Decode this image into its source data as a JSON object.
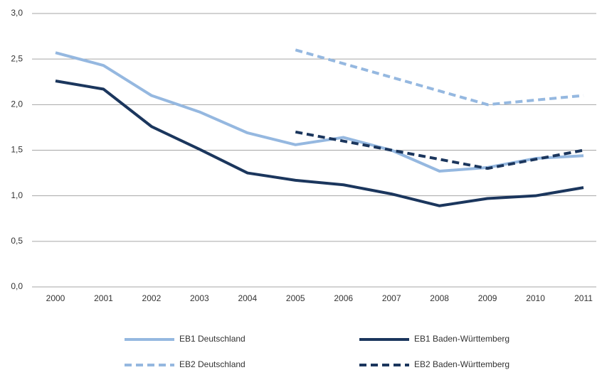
{
  "chart_data": {
    "type": "line",
    "categories": [
      "2000",
      "2001",
      "2002",
      "2003",
      "2004",
      "2005",
      "2006",
      "2007",
      "2008",
      "2009",
      "2010",
      "2011"
    ],
    "series": [
      {
        "name": "EB1 Deutschland",
        "color": "#95b8e0",
        "dashed": false,
        "values": [
          2.57,
          2.43,
          2.1,
          1.92,
          1.69,
          1.56,
          1.64,
          1.5,
          1.27,
          1.31,
          1.41,
          1.44
        ]
      },
      {
        "name": "EB1 Baden-Württemberg",
        "color": "#1b365d",
        "dashed": false,
        "values": [
          2.26,
          2.17,
          1.76,
          1.51,
          1.25,
          1.17,
          1.12,
          1.02,
          0.89,
          0.97,
          1.0,
          1.09
        ]
      },
      {
        "name": "EB2 Deutschland",
        "color": "#95b8e0",
        "dashed": true,
        "values": [
          null,
          null,
          null,
          null,
          null,
          2.6,
          2.45,
          2.3,
          2.15,
          2.0,
          2.05,
          2.1
        ]
      },
      {
        "name": "EB2 Baden-Württemberg",
        "color": "#1b365d",
        "dashed": true,
        "values": [
          null,
          null,
          null,
          null,
          null,
          1.7,
          1.6,
          1.5,
          1.4,
          1.3,
          1.4,
          1.5
        ]
      }
    ],
    "ylim": [
      0,
      3
    ],
    "yticks": [
      {
        "value": 0,
        "label": "0,0"
      },
      {
        "value": 0.5,
        "label": "0,5"
      },
      {
        "value": 1,
        "label": "1,0"
      },
      {
        "value": 1.5,
        "label": "1,5"
      },
      {
        "value": 2,
        "label": "2,0"
      },
      {
        "value": 2.5,
        "label": "2,5"
      },
      {
        "value": 3,
        "label": "3,0"
      }
    ],
    "grid": true,
    "legend": "bottom"
  }
}
